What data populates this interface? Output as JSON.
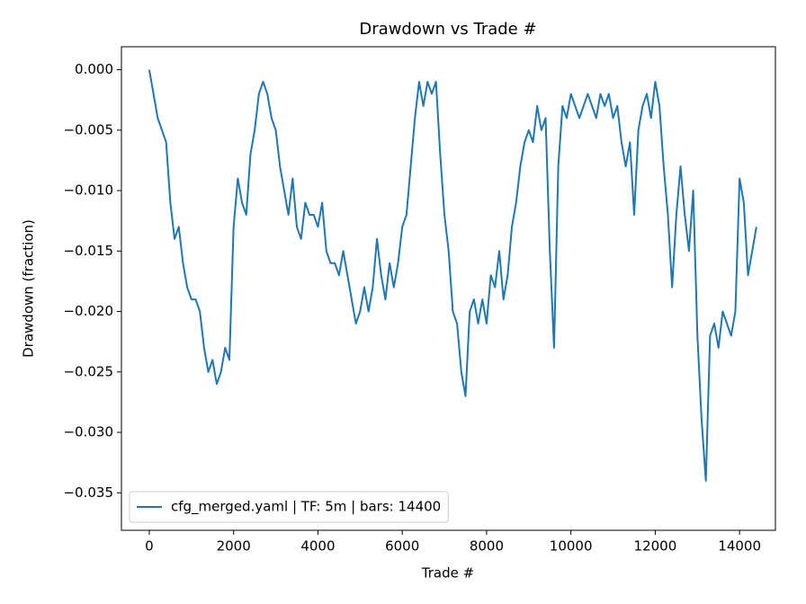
{
  "chart_data": {
    "type": "line",
    "title": "Drawdown vs Trade #",
    "x_label": "Trade #",
    "y_label": "Drawdown (fraction)",
    "x": [
      0,
      100,
      200,
      300,
      400,
      500,
      600,
      700,
      800,
      900,
      1000,
      1100,
      1200,
      1300,
      1400,
      1500,
      1600,
      1700,
      1800,
      1900,
      2000,
      2100,
      2200,
      2300,
      2400,
      2500,
      2600,
      2700,
      2800,
      2900,
      3000,
      3100,
      3200,
      3300,
      3400,
      3500,
      3600,
      3700,
      3800,
      3900,
      4000,
      4100,
      4200,
      4300,
      4400,
      4500,
      4600,
      4700,
      4800,
      4900,
      5000,
      5100,
      5200,
      5300,
      5400,
      5500,
      5600,
      5700,
      5800,
      5900,
      6000,
      6100,
      6200,
      6300,
      6400,
      6500,
      6600,
      6700,
      6800,
      6900,
      7000,
      7100,
      7200,
      7300,
      7400,
      7500,
      7600,
      7700,
      7800,
      7900,
      8000,
      8100,
      8200,
      8300,
      8400,
      8500,
      8600,
      8700,
      8800,
      8900,
      9000,
      9100,
      9200,
      9300,
      9400,
      9500,
      9600,
      9700,
      9800,
      9900,
      10000,
      10100,
      10200,
      10300,
      10400,
      10500,
      10600,
      10700,
      10800,
      10900,
      11000,
      11100,
      11200,
      11300,
      11400,
      11500,
      11600,
      11700,
      11800,
      11900,
      12000,
      12100,
      12200,
      12300,
      12400,
      12500,
      12600,
      12700,
      12800,
      12900,
      13000,
      13100,
      13200,
      13300,
      13400,
      13500,
      13600,
      13700,
      13800,
      13900,
      14000,
      14100,
      14200,
      14300,
      14400
    ],
    "series": [
      {
        "name": "cfg_merged.yaml | TF: 5m | bars: 14400",
        "color": "#1f77b4",
        "values": [
          0,
          -0.002,
          -0.004,
          -0.005,
          -0.006,
          -0.011,
          -0.014,
          -0.013,
          -0.016,
          -0.018,
          -0.019,
          -0.019,
          -0.02,
          -0.023,
          -0.025,
          -0.024,
          -0.026,
          -0.025,
          -0.023,
          -0.024,
          -0.013,
          -0.009,
          -0.011,
          -0.012,
          -0.007,
          -0.005,
          -0.002,
          -0.001,
          -0.002,
          -0.004,
          -0.005,
          -0.008,
          -0.01,
          -0.012,
          -0.009,
          -0.013,
          -0.014,
          -0.011,
          -0.012,
          -0.012,
          -0.013,
          -0.011,
          -0.015,
          -0.016,
          -0.016,
          -0.017,
          -0.015,
          -0.017,
          -0.019,
          -0.021,
          -0.02,
          -0.018,
          -0.02,
          -0.018,
          -0.014,
          -0.017,
          -0.019,
          -0.016,
          -0.018,
          -0.016,
          -0.013,
          -0.012,
          -0.008,
          -0.004,
          -0.001,
          -0.003,
          -0.001,
          -0.002,
          -0.001,
          -0.007,
          -0.012,
          -0.015,
          -0.02,
          -0.021,
          -0.025,
          -0.027,
          -0.02,
          -0.019,
          -0.021,
          -0.019,
          -0.021,
          -0.017,
          -0.018,
          -0.015,
          -0.019,
          -0.017,
          -0.013,
          -0.011,
          -0.008,
          -0.006,
          -0.005,
          -0.006,
          -0.003,
          -0.005,
          -0.004,
          -0.015,
          -0.023,
          -0.008,
          -0.003,
          -0.004,
          -0.002,
          -0.003,
          -0.004,
          -0.003,
          -0.002,
          -0.003,
          -0.004,
          -0.002,
          -0.003,
          -0.002,
          -0.004,
          -0.003,
          -0.006,
          -0.008,
          -0.006,
          -0.012,
          -0.005,
          -0.003,
          -0.002,
          -0.004,
          -0.001,
          -0.003,
          -0.008,
          -0.012,
          -0.018,
          -0.012,
          -0.008,
          -0.012,
          -0.015,
          -0.01,
          -0.022,
          -0.029,
          -0.034,
          -0.022,
          -0.021,
          -0.023,
          -0.02,
          -0.021,
          -0.022,
          -0.02,
          -0.009,
          -0.011,
          -0.017,
          -0.015,
          -0.013
        ]
      }
    ],
    "xlim": [
      -660,
      14850
    ],
    "xticks": [
      0,
      2000,
      4000,
      6000,
      8000,
      10000,
      12000,
      14000
    ],
    "ylim": [
      -0.0381,
      0.0019
    ],
    "yticks": [
      {
        "value": 0,
        "label": "0.000"
      },
      {
        "value": -0.005,
        "label": "−0.005"
      },
      {
        "value": -0.01,
        "label": "−0.010"
      },
      {
        "value": -0.015,
        "label": "−0.015"
      },
      {
        "value": -0.02,
        "label": "−0.020"
      },
      {
        "value": -0.025,
        "label": "−0.025"
      },
      {
        "value": -0.03,
        "label": "−0.030"
      },
      {
        "value": -0.035,
        "label": "−0.035"
      }
    ],
    "legend": "lower left",
    "grid": false
  }
}
